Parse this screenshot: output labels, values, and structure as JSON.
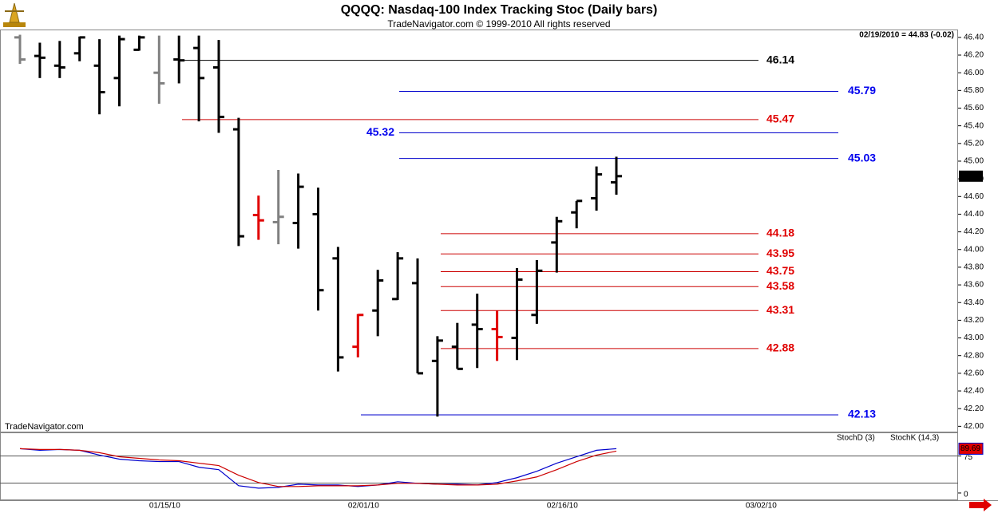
{
  "header": {
    "title": "QQQQ:  Nasdaq-100 Index Tracking Stoc  (Daily bars)",
    "subtitle": "TradeNavigator.com © 1999-2010 All rights reserved",
    "watermark": "TradeNavigator.com",
    "status": "02/19/2010 = 44.83 (-0.02)"
  },
  "chart_data": [
    {
      "type": "ohlc",
      "categories": [
        null,
        null,
        null,
        null,
        null,
        null,
        null,
        "01/15/10",
        null,
        null,
        null,
        null,
        null,
        null,
        null,
        null,
        null,
        "02/01/10",
        null,
        null,
        null,
        null,
        null,
        null,
        null,
        null,
        null,
        "02/16/10",
        null,
        null,
        null,
        null,
        null,
        null,
        null,
        null,
        null,
        "03/02/10"
      ],
      "open": [
        46.4,
        46.19,
        46.08,
        46.22,
        46.08,
        45.94,
        46.26,
        46.0,
        46.15,
        46.28,
        46.06,
        45.36,
        44.39,
        44.31,
        44.3,
        44.4,
        43.9,
        42.9,
        43.31,
        43.44,
        43.62,
        42.74,
        42.9,
        43.15,
        43.1,
        43.0,
        43.26,
        44.08,
        44.42,
        44.58,
        44.76,
        null,
        null,
        null,
        null,
        null,
        null,
        null
      ],
      "high": [
        46.43,
        46.34,
        46.36,
        46.41,
        46.38,
        46.42,
        46.42,
        46.42,
        46.42,
        46.42,
        46.37,
        45.49,
        44.61,
        44.9,
        44.86,
        44.7,
        44.03,
        43.27,
        43.77,
        43.97,
        43.9,
        43.02,
        43.17,
        43.5,
        43.31,
        43.79,
        43.88,
        44.37,
        44.55,
        44.94,
        45.05,
        null,
        null,
        null,
        null,
        null,
        null,
        null
      ],
      "low": [
        46.1,
        45.94,
        45.94,
        46.13,
        45.53,
        45.62,
        46.25,
        45.65,
        45.88,
        45.45,
        45.32,
        44.04,
        44.11,
        44.06,
        44.01,
        43.31,
        42.62,
        42.78,
        43.02,
        43.43,
        42.6,
        42.11,
        42.65,
        42.66,
        42.74,
        42.75,
        43.16,
        43.74,
        44.24,
        44.44,
        44.62,
        null,
        null,
        null,
        null,
        null,
        null,
        null
      ],
      "close": [
        46.15,
        46.17,
        46.06,
        46.4,
        45.78,
        46.38,
        46.4,
        45.88,
        46.14,
        45.94,
        45.5,
        44.15,
        44.33,
        44.37,
        44.71,
        43.54,
        42.78,
        43.26,
        43.65,
        43.9,
        42.6,
        42.97,
        42.65,
        43.1,
        43.01,
        43.66,
        43.76,
        44.32,
        44.55,
        44.85,
        44.83,
        null,
        null,
        null,
        null,
        null,
        null,
        null
      ],
      "colors": [
        "#808080",
        "#000000",
        "#000000",
        "#000000",
        "#000000",
        "#000000",
        "#000000",
        "#808080",
        "#000000",
        "#000000",
        "#000000",
        "#000000",
        "#e00000",
        "#808080",
        "#000000",
        "#000000",
        "#000000",
        "#e00000",
        "#000000",
        "#000000",
        "#000000",
        "#000000",
        "#000000",
        "#000000",
        "#e00000",
        "#000000",
        "#000000",
        "#000000",
        "#000000",
        "#000000",
        "#000000",
        null,
        null,
        null,
        null,
        null,
        null,
        null
      ],
      "ylim": [
        41.94,
        46.48
      ],
      "yticks": [
        {
          "value": 42.0,
          "label": "42.00"
        },
        {
          "value": 42.2,
          "label": "42.20"
        },
        {
          "value": 42.4,
          "label": "42.40"
        },
        {
          "value": 42.6,
          "label": "42.60"
        },
        {
          "value": 42.8,
          "label": "42.80"
        },
        {
          "value": 43.0,
          "label": "43.00"
        },
        {
          "value": 43.2,
          "label": "43.20"
        },
        {
          "value": 43.4,
          "label": "43.40"
        },
        {
          "value": 43.6,
          "label": "43.60"
        },
        {
          "value": 43.8,
          "label": "43.80"
        },
        {
          "value": 44.0,
          "label": "44.00"
        },
        {
          "value": 44.2,
          "label": "44.20"
        },
        {
          "value": 44.4,
          "label": "44.40"
        },
        {
          "value": 44.6,
          "label": "44.60"
        },
        {
          "value": 44.8,
          "label": "44.80"
        },
        {
          "value": 45.0,
          "label": "45.00"
        },
        {
          "value": 45.2,
          "label": "45.20"
        },
        {
          "value": 45.4,
          "label": "45.40"
        },
        {
          "value": 45.6,
          "label": "45.60"
        },
        {
          "value": 45.8,
          "label": "45.80"
        },
        {
          "value": 46.0,
          "label": "46.00"
        },
        {
          "value": 46.2,
          "label": "46.20"
        },
        {
          "value": 46.4,
          "label": "46.40"
        }
      ],
      "levels": [
        {
          "value": 46.14,
          "color": "#000000"
        },
        {
          "value": 45.79,
          "color": "#0000cc"
        },
        {
          "value": 45.47,
          "color": "#cc0000"
        },
        {
          "value": 45.32,
          "color": "#0000cc"
        },
        {
          "value": 45.03,
          "color": "#0000cc"
        },
        {
          "value": 44.18,
          "color": "#cc0000"
        },
        {
          "value": 43.95,
          "color": "#cc0000"
        },
        {
          "value": 43.75,
          "color": "#cc0000"
        },
        {
          "value": 43.58,
          "color": "#cc0000"
        },
        {
          "value": 43.31,
          "color": "#cc0000"
        },
        {
          "value": 42.88,
          "color": "#cc0000"
        },
        {
          "value": 42.13,
          "color": "#0000cc"
        }
      ]
    },
    {
      "type": "line",
      "series": [
        {
          "name": "StochK (14,3)",
          "color": "#0000cc",
          "values": [
            89.7,
            86.5,
            88.1,
            86.5,
            76.7,
            68.5,
            65.3,
            63.6,
            63.6,
            52.2,
            47.3,
            14.7,
            9.8,
            11.4,
            17.9,
            16.3,
            16.3,
            13.1,
            16.3,
            22.8,
            19.6,
            17.9,
            17.9,
            16.3,
            21.2,
            31.0,
            44.0,
            60.4,
            73.4,
            86.5,
            89.69,
            null,
            null,
            null,
            null,
            null,
            null,
            null
          ]
        },
        {
          "name": "StochD (3)",
          "color": "#cc0000",
          "values": [
            89.7,
            88.1,
            88.1,
            86.5,
            81.6,
            73.4,
            70.1,
            66.9,
            65.3,
            60.4,
            55.5,
            35.9,
            21.2,
            13.1,
            13.1,
            14.7,
            14.7,
            14.7,
            16.3,
            19.6,
            19.6,
            17.9,
            16.3,
            16.3,
            17.9,
            24.5,
            32.6,
            47.3,
            63.6,
            76.7,
            84.8,
            null,
            null,
            null,
            null,
            null,
            null,
            null
          ]
        }
      ],
      "ylim": [
        -13,
        121
      ],
      "yticks": [
        0,
        75
      ],
      "reference_lines": [
        20,
        75
      ]
    }
  ]
}
